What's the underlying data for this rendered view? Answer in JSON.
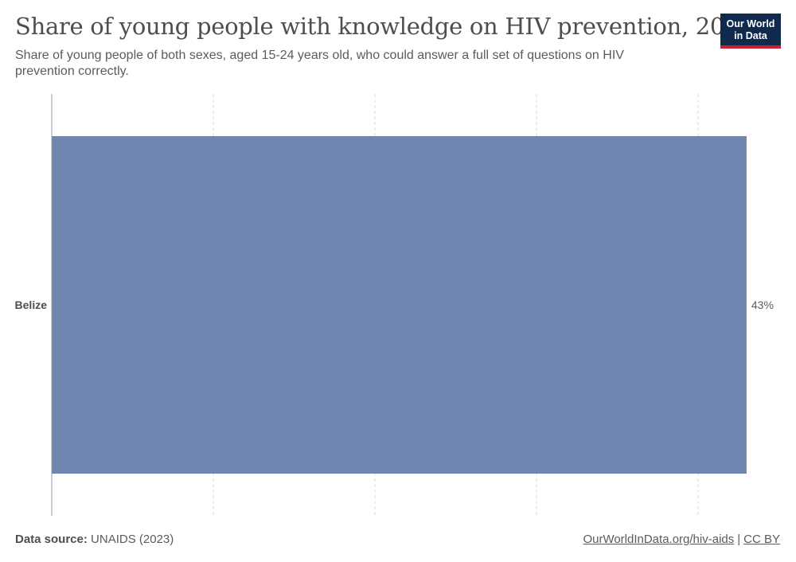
{
  "header": {
    "title": "Share of young people with knowledge on HIV prevention, 2016",
    "subtitle": "Share of young people of both sexes, aged 15-24 years old, who could answer a full set of questions on HIV prevention correctly."
  },
  "logo": {
    "line1": "Our World",
    "line2": "in Data"
  },
  "footer": {
    "source_label": "Data source:",
    "source_value": "UNAIDS (2023)",
    "link_text": "OurWorldInData.org/hiv-aids",
    "separator": "|",
    "license": "CC BY"
  },
  "colors": {
    "bar": "#6f87b0",
    "grid": "#dddddd",
    "axis": "#999999",
    "logo_bg": "#0f2a4d",
    "logo_accent": "#cf1d2c"
  },
  "chart_data": {
    "type": "bar",
    "orientation": "horizontal",
    "categories": [
      "Belize"
    ],
    "values": [
      43
    ],
    "value_labels": [
      "43%"
    ],
    "xlim": [
      0,
      45
    ],
    "grid_values": [
      10,
      20,
      30,
      40
    ],
    "grid": true,
    "unit": "%"
  }
}
